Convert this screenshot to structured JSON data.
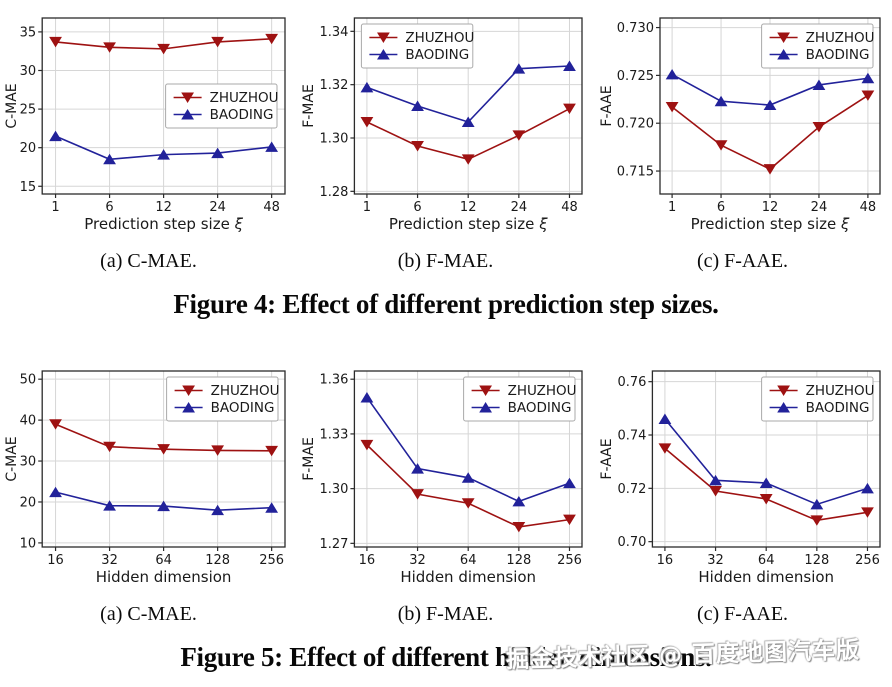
{
  "page": {
    "background": "#ffffff",
    "watermark": {
      "text": "掘金技术社区 @ 百度地图汽车版",
      "color": "#ffffff",
      "shadow_color": "#8b8b8b"
    }
  },
  "colors": {
    "zhuzhou": "#9e1212",
    "baoding": "#22229a",
    "grid": "#d6d6d6",
    "spine": "#2b2b2b",
    "text": "#1a1a1a",
    "legend_border": "#aaaaaa",
    "legend_bg": "#ffffff"
  },
  "figure4": {
    "captions": [
      "(a)  C-MAE.",
      "(b)  F-MAE.",
      "(c)  F-AAE."
    ],
    "title": "Figure 4: Effect of different prediction step sizes."
  },
  "figure5": {
    "captions": [
      "(a)  C-MAE.",
      "(b)  F-MAE.",
      "(c)  F-AAE."
    ],
    "title": "Figure 5: Effect of different hidden dimensions."
  },
  "chart_data": [
    {
      "id": "fig4a",
      "type": "line",
      "figure": "4",
      "panel": "a",
      "xlabel": "Prediction step size ξ",
      "ylabel": "C-MAE",
      "categories": [
        "1",
        "6",
        "12",
        "24",
        "48"
      ],
      "ylim": [
        14.0,
        36.8
      ],
      "yticks": [
        "15",
        "20",
        "25",
        "30",
        "35"
      ],
      "grid": true,
      "legend_pos": "center-right",
      "series": [
        {
          "name": "ZHUZHOU",
          "color": "#9e1212",
          "marker": "triangle-down",
          "values": [
            33.7,
            33.0,
            32.8,
            33.7,
            34.1
          ]
        },
        {
          "name": "BAODING",
          "color": "#22229a",
          "marker": "triangle-up",
          "values": [
            21.5,
            18.5,
            19.1,
            19.3,
            20.1
          ]
        }
      ]
    },
    {
      "id": "fig4b",
      "type": "line",
      "figure": "4",
      "panel": "b",
      "xlabel": "Prediction step size ξ",
      "ylabel": "F-MAE",
      "categories": [
        "1",
        "6",
        "12",
        "24",
        "48"
      ],
      "ylim": [
        1.279,
        1.345
      ],
      "yticks": [
        "1.28",
        "1.30",
        "1.32",
        "1.34"
      ],
      "grid": true,
      "legend_pos": "upper-left",
      "series": [
        {
          "name": "ZHUZHOU",
          "color": "#9e1212",
          "marker": "triangle-down",
          "values": [
            1.306,
            1.297,
            1.292,
            1.301,
            1.311
          ]
        },
        {
          "name": "BAODING",
          "color": "#22229a",
          "marker": "triangle-up",
          "values": [
            1.319,
            1.312,
            1.306,
            1.326,
            1.327
          ]
        }
      ]
    },
    {
      "id": "fig4c",
      "type": "line",
      "figure": "4",
      "panel": "c",
      "xlabel": "Prediction step size ξ",
      "ylabel": "F-AAE",
      "categories": [
        "1",
        "6",
        "12",
        "24",
        "48"
      ],
      "ylim": [
        0.7126,
        0.731
      ],
      "yticks": [
        "0.715",
        "0.720",
        "0.725",
        "0.730"
      ],
      "grid": true,
      "legend_pos": "upper-right",
      "series": [
        {
          "name": "ZHUZHOU",
          "color": "#9e1212",
          "marker": "triangle-down",
          "values": [
            0.7217,
            0.7177,
            0.7152,
            0.7196,
            0.7229
          ]
        },
        {
          "name": "BAODING",
          "color": "#22229a",
          "marker": "triangle-up",
          "values": [
            0.7251,
            0.7223,
            0.7219,
            0.724,
            0.7247
          ]
        }
      ]
    },
    {
      "id": "fig5a",
      "type": "line",
      "figure": "5",
      "panel": "a",
      "xlabel": "Hidden dimension",
      "ylabel": "C-MAE",
      "categories": [
        "16",
        "32",
        "64",
        "128",
        "256"
      ],
      "ylim": [
        9.0,
        52.0
      ],
      "yticks": [
        "10",
        "20",
        "30",
        "40",
        "50"
      ],
      "grid": true,
      "legend_pos": "upper-right",
      "series": [
        {
          "name": "ZHUZHOU",
          "color": "#9e1212",
          "marker": "triangle-down",
          "values": [
            39.0,
            33.5,
            32.9,
            32.6,
            32.5
          ]
        },
        {
          "name": "BAODING",
          "color": "#22229a",
          "marker": "triangle-up",
          "values": [
            22.4,
            19.1,
            19.0,
            18.0,
            18.6
          ]
        }
      ]
    },
    {
      "id": "fig5b",
      "type": "line",
      "figure": "5",
      "panel": "b",
      "xlabel": "Hidden dimension",
      "ylabel": "F-MAE",
      "categories": [
        "16",
        "32",
        "64",
        "128",
        "256"
      ],
      "ylim": [
        1.268,
        1.3645
      ],
      "yticks": [
        "1.27",
        "1.30",
        "1.33",
        "1.36"
      ],
      "grid": true,
      "legend_pos": "upper-right",
      "series": [
        {
          "name": "ZHUZHOU",
          "color": "#9e1212",
          "marker": "triangle-down",
          "values": [
            1.324,
            1.297,
            1.292,
            1.279,
            1.283
          ]
        },
        {
          "name": "BAODING",
          "color": "#22229a",
          "marker": "triangle-up",
          "values": [
            1.35,
            1.311,
            1.306,
            1.293,
            1.303
          ]
        }
      ]
    },
    {
      "id": "fig5c",
      "type": "line",
      "figure": "5",
      "panel": "c",
      "xlabel": "Hidden dimension",
      "ylabel": "F-AAE",
      "categories": [
        "16",
        "32",
        "64",
        "128",
        "256"
      ],
      "ylim": [
        0.698,
        0.764
      ],
      "yticks": [
        "0.70",
        "0.72",
        "0.74",
        "0.76"
      ],
      "grid": true,
      "legend_pos": "upper-right",
      "series": [
        {
          "name": "ZHUZHOU",
          "color": "#9e1212",
          "marker": "triangle-down",
          "values": [
            0.735,
            0.719,
            0.716,
            0.708,
            0.711
          ]
        },
        {
          "name": "BAODING",
          "color": "#22229a",
          "marker": "triangle-up",
          "values": [
            0.746,
            0.723,
            0.722,
            0.714,
            0.72
          ]
        }
      ]
    }
  ]
}
